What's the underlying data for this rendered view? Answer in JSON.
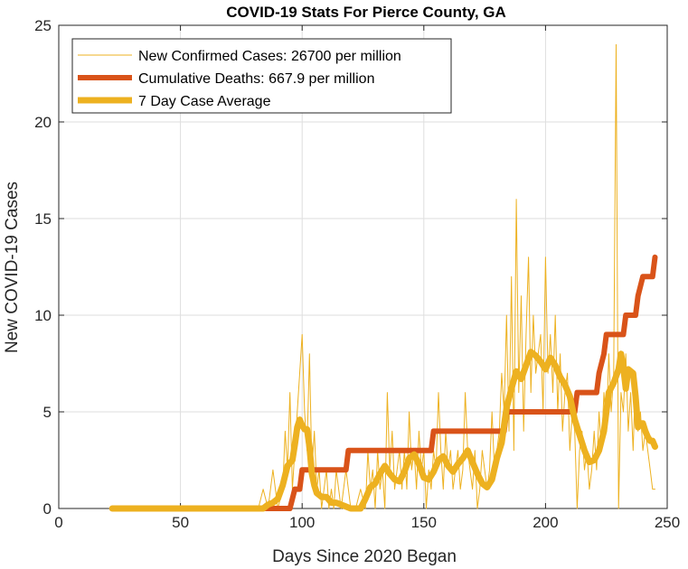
{
  "chart_data": {
    "type": "line",
    "title": "COVID-19 Stats For Pierce County, GA",
    "xlabel": "Days Since 2020 Began",
    "ylabel": "New COVID-19 Cases",
    "xlim": [
      0,
      250
    ],
    "ylim": [
      0,
      25
    ],
    "xticks": [
      0,
      50,
      100,
      150,
      200,
      250
    ],
    "yticks": [
      0,
      5,
      10,
      15,
      20,
      25
    ],
    "grid": true,
    "legend_position": "top-left",
    "series": [
      {
        "name": "New Confirmed Cases: 26700 per million",
        "color": "#EDB120",
        "style": "thin",
        "points": [
          [
            22,
            0
          ],
          [
            82,
            0
          ],
          [
            84,
            1
          ],
          [
            86,
            0
          ],
          [
            88,
            2
          ],
          [
            90,
            0
          ],
          [
            92,
            1
          ],
          [
            93,
            4
          ],
          [
            94,
            2
          ],
          [
            95,
            6
          ],
          [
            96,
            1
          ],
          [
            97,
            3
          ],
          [
            98,
            5
          ],
          [
            99,
            7
          ],
          [
            100,
            9
          ],
          [
            101,
            5
          ],
          [
            102,
            3
          ],
          [
            103,
            8
          ],
          [
            104,
            2
          ],
          [
            105,
            4
          ],
          [
            106,
            1
          ],
          [
            107,
            2
          ],
          [
            108,
            0
          ],
          [
            109,
            1
          ],
          [
            110,
            2
          ],
          [
            111,
            0
          ],
          [
            112,
            1
          ],
          [
            113,
            0
          ],
          [
            114,
            2
          ],
          [
            115,
            1
          ],
          [
            116,
            0
          ],
          [
            118,
            2
          ],
          [
            120,
            0
          ],
          [
            122,
            0
          ],
          [
            124,
            1
          ],
          [
            126,
            0
          ],
          [
            127,
            3
          ],
          [
            128,
            1
          ],
          [
            129,
            2
          ],
          [
            130,
            0
          ],
          [
            131,
            3
          ],
          [
            132,
            1
          ],
          [
            133,
            2
          ],
          [
            134,
            0
          ],
          [
            135,
            6
          ],
          [
            136,
            2
          ],
          [
            137,
            4
          ],
          [
            138,
            1
          ],
          [
            139,
            2
          ],
          [
            140,
            3
          ],
          [
            141,
            1
          ],
          [
            142,
            3
          ],
          [
            143,
            1
          ],
          [
            144,
            5
          ],
          [
            145,
            2
          ],
          [
            146,
            3
          ],
          [
            147,
            1
          ],
          [
            148,
            4
          ],
          [
            149,
            2
          ],
          [
            150,
            3
          ],
          [
            151,
            0
          ],
          [
            152,
            2
          ],
          [
            153,
            1
          ],
          [
            154,
            3
          ],
          [
            155,
            2
          ],
          [
            156,
            6
          ],
          [
            157,
            3
          ],
          [
            158,
            1
          ],
          [
            159,
            4
          ],
          [
            160,
            2
          ],
          [
            161,
            3
          ],
          [
            162,
            1
          ],
          [
            163,
            2
          ],
          [
            164,
            3
          ],
          [
            165,
            1
          ],
          [
            166,
            2
          ],
          [
            167,
            6
          ],
          [
            168,
            3
          ],
          [
            169,
            2
          ],
          [
            170,
            1
          ],
          [
            171,
            3
          ],
          [
            172,
            0
          ],
          [
            173,
            1
          ],
          [
            174,
            3
          ],
          [
            175,
            2
          ],
          [
            176,
            1
          ],
          [
            177,
            2
          ],
          [
            178,
            5
          ],
          [
            179,
            2
          ],
          [
            180,
            3
          ],
          [
            181,
            4
          ],
          [
            182,
            7
          ],
          [
            183,
            5
          ],
          [
            184,
            10
          ],
          [
            185,
            4
          ],
          [
            186,
            12
          ],
          [
            187,
            3
          ],
          [
            188,
            16
          ],
          [
            189,
            6
          ],
          [
            190,
            11
          ],
          [
            191,
            4
          ],
          [
            192,
            9
          ],
          [
            193,
            13
          ],
          [
            194,
            6
          ],
          [
            195,
            10
          ],
          [
            196,
            7
          ],
          [
            197,
            8
          ],
          [
            198,
            9
          ],
          [
            199,
            5
          ],
          [
            200,
            13
          ],
          [
            201,
            7
          ],
          [
            202,
            9
          ],
          [
            203,
            6
          ],
          [
            204,
            10
          ],
          [
            205,
            5
          ],
          [
            206,
            8
          ],
          [
            207,
            4
          ],
          [
            208,
            6
          ],
          [
            209,
            7
          ],
          [
            210,
            3
          ],
          [
            211,
            5
          ],
          [
            212,
            4
          ],
          [
            213,
            0
          ],
          [
            214,
            3
          ],
          [
            215,
            4
          ],
          [
            216,
            2
          ],
          [
            217,
            3
          ],
          [
            218,
            1
          ],
          [
            219,
            2
          ],
          [
            220,
            4
          ],
          [
            221,
            2
          ],
          [
            222,
            5
          ],
          [
            223,
            3
          ],
          [
            224,
            6
          ],
          [
            225,
            4
          ],
          [
            226,
            8
          ],
          [
            227,
            5
          ],
          [
            228,
            7
          ],
          [
            229,
            24
          ],
          [
            230,
            0
          ],
          [
            231,
            6
          ],
          [
            232,
            5
          ],
          [
            233,
            8
          ],
          [
            234,
            4
          ],
          [
            235,
            6
          ],
          [
            236,
            3
          ],
          [
            237,
            7
          ],
          [
            238,
            4
          ],
          [
            239,
            5
          ],
          [
            240,
            3
          ],
          [
            241,
            4
          ],
          [
            242,
            3
          ],
          [
            243,
            2
          ],
          [
            244,
            1
          ],
          [
            245,
            1
          ]
        ]
      },
      {
        "name": "Cumulative Deaths: 667.9 per million",
        "color": "#D95319",
        "style": "thick",
        "points": [
          [
            22,
            0
          ],
          [
            95,
            0
          ],
          [
            97,
            1
          ],
          [
            99,
            1
          ],
          [
            100,
            2
          ],
          [
            118,
            2
          ],
          [
            119,
            3
          ],
          [
            153,
            3
          ],
          [
            154,
            4
          ],
          [
            183,
            4
          ],
          [
            184,
            5
          ],
          [
            212,
            5
          ],
          [
            213,
            6
          ],
          [
            221,
            6
          ],
          [
            222,
            7
          ],
          [
            224,
            8
          ],
          [
            225,
            9
          ],
          [
            232,
            9
          ],
          [
            233,
            10
          ],
          [
            237,
            10
          ],
          [
            238,
            11
          ],
          [
            240,
            12
          ],
          [
            244,
            12
          ],
          [
            245,
            13
          ]
        ]
      },
      {
        "name": "7 Day Case Average",
        "color": "#EDB120",
        "style": "thicker",
        "points": [
          [
            22,
            0
          ],
          [
            84,
            0
          ],
          [
            86,
            0.2
          ],
          [
            88,
            0.3
          ],
          [
            90,
            0.5
          ],
          [
            92,
            1.2
          ],
          [
            94,
            2.2
          ],
          [
            96,
            2.5
          ],
          [
            97,
            3.3
          ],
          [
            98,
            4.2
          ],
          [
            99,
            4.6
          ],
          [
            100,
            4.3
          ],
          [
            101,
            4.1
          ],
          [
            102,
            4.1
          ],
          [
            103,
            3.2
          ],
          [
            104,
            1.8
          ],
          [
            105,
            1.2
          ],
          [
            106,
            0.8
          ],
          [
            108,
            0.6
          ],
          [
            110,
            0.6
          ],
          [
            112,
            0.3
          ],
          [
            114,
            0.3
          ],
          [
            116,
            0.2
          ],
          [
            118,
            0.1
          ],
          [
            120,
            0
          ],
          [
            122,
            0
          ],
          [
            124,
            0
          ],
          [
            126,
            0.5
          ],
          [
            128,
            1.1
          ],
          [
            130,
            1.3
          ],
          [
            132,
            1.8
          ],
          [
            134,
            2.2
          ],
          [
            136,
            1.8
          ],
          [
            138,
            1.5
          ],
          [
            140,
            1.4
          ],
          [
            142,
            1.9
          ],
          [
            144,
            2.6
          ],
          [
            146,
            2.8
          ],
          [
            148,
            2.3
          ],
          [
            150,
            1.6
          ],
          [
            152,
            1.5
          ],
          [
            154,
            1.9
          ],
          [
            156,
            2.5
          ],
          [
            158,
            2.7
          ],
          [
            160,
            2.2
          ],
          [
            162,
            1.9
          ],
          [
            164,
            2.3
          ],
          [
            166,
            2.6
          ],
          [
            168,
            3.0
          ],
          [
            170,
            2.4
          ],
          [
            172,
            1.8
          ],
          [
            174,
            1.3
          ],
          [
            176,
            1.1
          ],
          [
            178,
            1.5
          ],
          [
            180,
            2.6
          ],
          [
            182,
            3.4
          ],
          [
            184,
            5.2
          ],
          [
            186,
            6.2
          ],
          [
            188,
            7.1
          ],
          [
            190,
            6.7
          ],
          [
            192,
            7.4
          ],
          [
            194,
            8.1
          ],
          [
            196,
            7.9
          ],
          [
            198,
            7.6
          ],
          [
            200,
            7.2
          ],
          [
            202,
            7.8
          ],
          [
            204,
            7.4
          ],
          [
            206,
            6.8
          ],
          [
            208,
            6.4
          ],
          [
            210,
            5.8
          ],
          [
            212,
            4.6
          ],
          [
            214,
            3.8
          ],
          [
            216,
            3.0
          ],
          [
            218,
            2.4
          ],
          [
            220,
            2.5
          ],
          [
            222,
            3.0
          ],
          [
            224,
            4.0
          ],
          [
            226,
            6.0
          ],
          [
            228,
            6.5
          ],
          [
            230,
            7.2
          ],
          [
            231,
            8.0
          ],
          [
            232,
            7.3
          ],
          [
            233,
            6.2
          ],
          [
            234,
            7.2
          ],
          [
            236,
            7.0
          ],
          [
            237,
            5.8
          ],
          [
            238,
            4.2
          ],
          [
            239,
            4.4
          ],
          [
            240,
            4.4
          ],
          [
            241,
            4.0
          ],
          [
            242,
            3.7
          ],
          [
            243,
            3.5
          ],
          [
            244,
            3.5
          ],
          [
            245,
            3.2
          ]
        ]
      }
    ]
  }
}
